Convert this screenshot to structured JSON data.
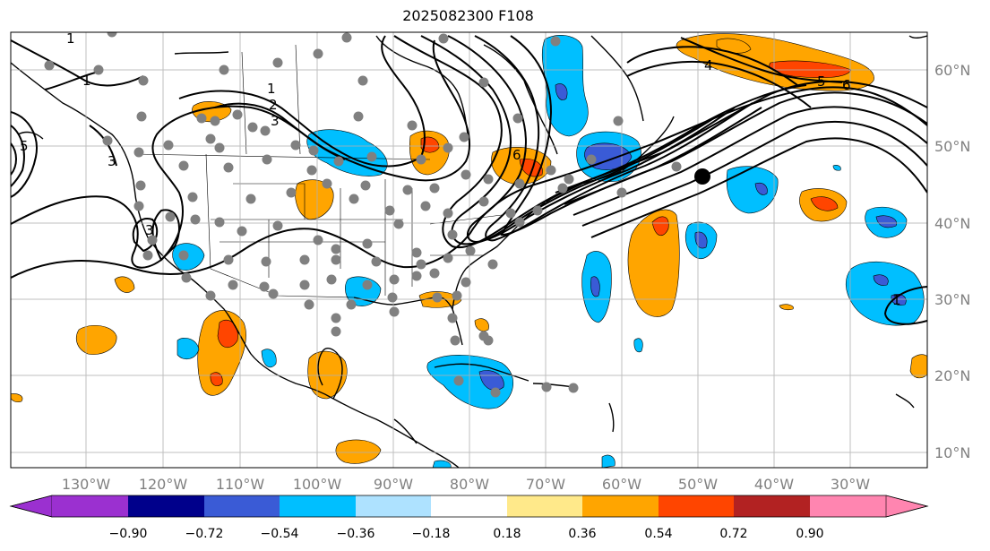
{
  "title": "2025082300 F108",
  "map": {
    "lon_ticks": [
      "130°W",
      "120°W",
      "110°W",
      "100°W",
      "90°W",
      "80°W",
      "70°W",
      "60°W",
      "50°W",
      "40°W",
      "30°W"
    ],
    "lat_ticks": [
      "60°N",
      "50°N",
      "40°N",
      "30°N",
      "20°N",
      "10°N"
    ],
    "contour_labels": [
      "1",
      "1",
      "1",
      "2",
      "3",
      "3",
      "3",
      "4",
      "5",
      "6",
      "6",
      "5",
      "1"
    ],
    "colors": {
      "frame": "#000000",
      "grid": "#b0b0b0",
      "coast": "#000000",
      "station": "#808080",
      "marker": "#000000"
    }
  },
  "colorbar": {
    "labels": [
      "−0.90",
      "−0.72",
      "−0.54",
      "−0.36",
      "−0.18",
      "0.18",
      "0.36",
      "0.54",
      "0.72",
      "0.90"
    ],
    "colors": [
      "#9b30d0",
      "#00008b",
      "#3a5bd6",
      "#00bfff",
      "#aee2ff",
      "#ffffff",
      "#ffe98a",
      "#ffa500",
      "#ff4500",
      "#b22222",
      "#ff85b0"
    ]
  }
}
